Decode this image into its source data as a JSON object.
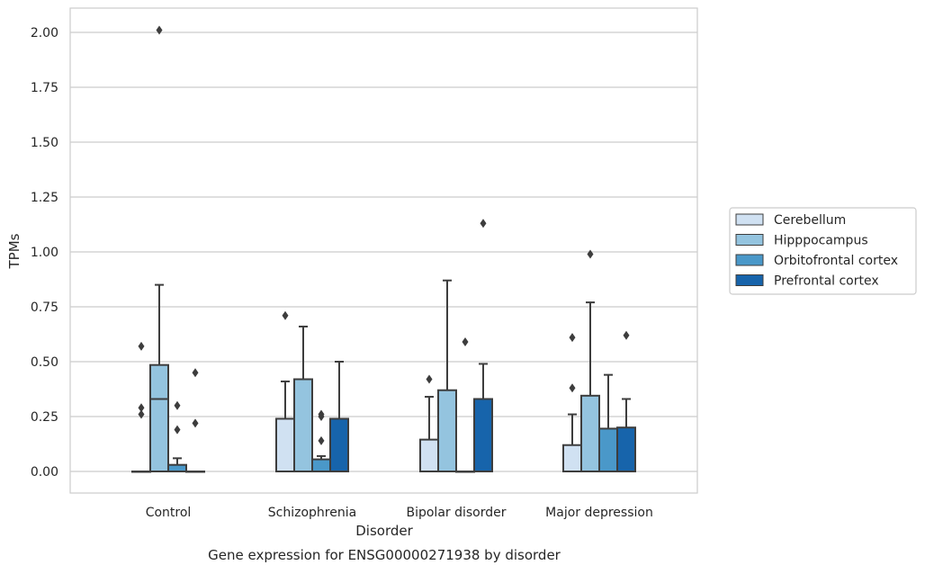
{
  "chart_data": {
    "type": "box",
    "xlabel": "Disorder",
    "ylabel": "TPMs",
    "caption": "Gene expression for ENSG00000271938 by disorder",
    "ylim": [
      -0.1,
      2.12
    ],
    "y_ticks": [
      0.0,
      0.25,
      0.5,
      0.75,
      1.0,
      1.25,
      1.5,
      1.75,
      2.0
    ],
    "y_tick_labels": [
      "0.00",
      "0.25",
      "0.50",
      "0.75",
      "1.00",
      "1.25",
      "1.50",
      "1.75",
      "2.00"
    ],
    "grid": "horizontal",
    "legend_position": "right",
    "categories": [
      "Control",
      "Schizophrenia",
      "Bipolar disorder",
      "Major depression"
    ],
    "series": [
      {
        "name": "Cerebellum",
        "color": "#d0e1f2",
        "boxes": [
          {
            "whislo": 0.0,
            "q1": 0.0,
            "median": 0.0,
            "q3": 0.0,
            "whishi": 0.0,
            "fliers": [
              0.57,
              0.29,
              0.26
            ]
          },
          {
            "whislo": 0.0,
            "q1": 0.0,
            "median": 0.0,
            "q3": 0.24,
            "whishi": 0.41,
            "fliers": [
              0.71
            ]
          },
          {
            "whislo": 0.0,
            "q1": 0.0,
            "median": 0.0,
            "q3": 0.145,
            "whishi": 0.34,
            "fliers": [
              0.42
            ]
          },
          {
            "whislo": 0.0,
            "q1": 0.0,
            "median": 0.0,
            "q3": 0.12,
            "whishi": 0.26,
            "fliers": [
              0.61,
              0.38
            ]
          }
        ]
      },
      {
        "name": "Hipppocampus",
        "color": "#94c4df",
        "boxes": [
          {
            "whislo": 0.0,
            "q1": 0.0,
            "median": 0.33,
            "q3": 0.485,
            "whishi": 0.85,
            "fliers": [
              2.01
            ]
          },
          {
            "whislo": 0.0,
            "q1": 0.0,
            "median": 0.0,
            "q3": 0.42,
            "whishi": 0.66,
            "fliers": []
          },
          {
            "whislo": 0.0,
            "q1": 0.0,
            "median": 0.0,
            "q3": 0.37,
            "whishi": 0.87,
            "fliers": []
          },
          {
            "whislo": 0.0,
            "q1": 0.0,
            "median": 0.0,
            "q3": 0.345,
            "whishi": 0.77,
            "fliers": [
              0.99
            ]
          }
        ]
      },
      {
        "name": "Orbitofrontal cortex",
        "color": "#4a98c9",
        "boxes": [
          {
            "whislo": 0.0,
            "q1": 0.0,
            "median": 0.0,
            "q3": 0.03,
            "whishi": 0.06,
            "fliers": [
              0.3,
              0.19
            ]
          },
          {
            "whislo": 0.0,
            "q1": 0.0,
            "median": 0.0,
            "q3": 0.055,
            "whishi": 0.07,
            "fliers": [
              0.26,
              0.25,
              0.14
            ]
          },
          {
            "whislo": 0.0,
            "q1": 0.0,
            "median": 0.0,
            "q3": 0.0,
            "whishi": 0.0,
            "fliers": [
              0.59
            ]
          },
          {
            "whislo": 0.0,
            "q1": 0.0,
            "median": 0.0,
            "q3": 0.195,
            "whishi": 0.44,
            "fliers": []
          }
        ]
      },
      {
        "name": "Prefrontal cortex",
        "color": "#1764ab",
        "boxes": [
          {
            "whislo": 0.0,
            "q1": 0.0,
            "median": 0.0,
            "q3": 0.0,
            "whishi": 0.0,
            "fliers": [
              0.45,
              0.22
            ]
          },
          {
            "whislo": 0.0,
            "q1": 0.0,
            "median": 0.0,
            "q3": 0.24,
            "whishi": 0.5,
            "fliers": []
          },
          {
            "whislo": 0.0,
            "q1": 0.0,
            "median": 0.0,
            "q3": 0.33,
            "whishi": 0.49,
            "fliers": [
              1.13
            ]
          },
          {
            "whislo": 0.0,
            "q1": 0.0,
            "median": 0.0,
            "q3": 0.2,
            "whishi": 0.33,
            "fliers": [
              0.62
            ]
          }
        ]
      }
    ]
  },
  "colors": {
    "grid": "#cccccc",
    "frame": "#cccccc",
    "box_edge": "#3d3d3d",
    "text": "#262626"
  }
}
